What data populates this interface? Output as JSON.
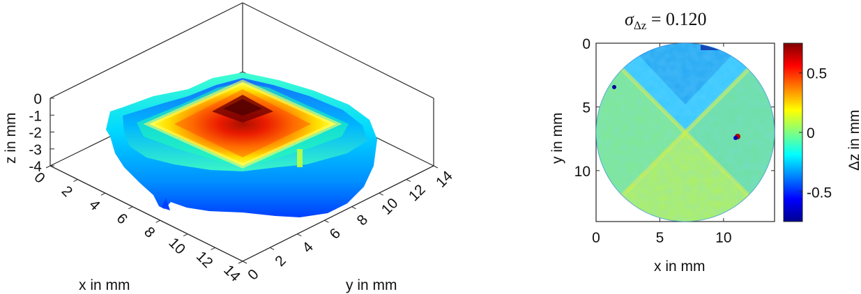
{
  "chart_data": [
    {
      "type": "surface3d",
      "title": "",
      "xlabel": "x in mm",
      "ylabel": "y in mm",
      "zlabel": "z in mm",
      "xticks": [
        "0",
        "2",
        "4",
        "6",
        "8",
        "10",
        "12",
        "14"
      ],
      "yticks": [
        "0",
        "2",
        "4",
        "6",
        "8",
        "10",
        "12",
        "14"
      ],
      "zticks": [
        "0",
        "-1",
        "-2",
        "-3",
        "-4"
      ],
      "xlim": [
        0,
        14
      ],
      "ylim": [
        0,
        14
      ],
      "zlim": [
        -4,
        0
      ],
      "colormap": "jet",
      "surface": {
        "description": "pyramid-shaped height map, peak at center",
        "peak_z": -0.4,
        "edge_z": -4.0,
        "apex_xy": [
          7,
          7
        ]
      }
    },
    {
      "type": "heatmap",
      "title": "σΔz = 0.120",
      "title_parts": {
        "symbol": "σ",
        "sub": "Δz",
        "eq": " = 0.120"
      },
      "sigma": 0.12,
      "xlabel": "x in mm",
      "ylabel": "y in mm",
      "xticks": [
        "0",
        "5",
        "10"
      ],
      "yticks": [
        "0",
        "5",
        "10"
      ],
      "xlim": [
        0,
        14
      ],
      "ylim": [
        0,
        14
      ],
      "colormap": "jet",
      "colorbar": {
        "label": "Δz in mm",
        "ticks": [
          "0.5",
          "0",
          "-0.5"
        ],
        "range": [
          -0.75,
          0.75
        ]
      }
    }
  ],
  "colors": {
    "jet_dark_blue": "#00008f",
    "jet_blue": "#0000ff",
    "jet_cyan": "#00ffff",
    "jet_yellow": "#ffff00",
    "jet_red": "#ff0000",
    "jet_dark_red": "#800000"
  }
}
